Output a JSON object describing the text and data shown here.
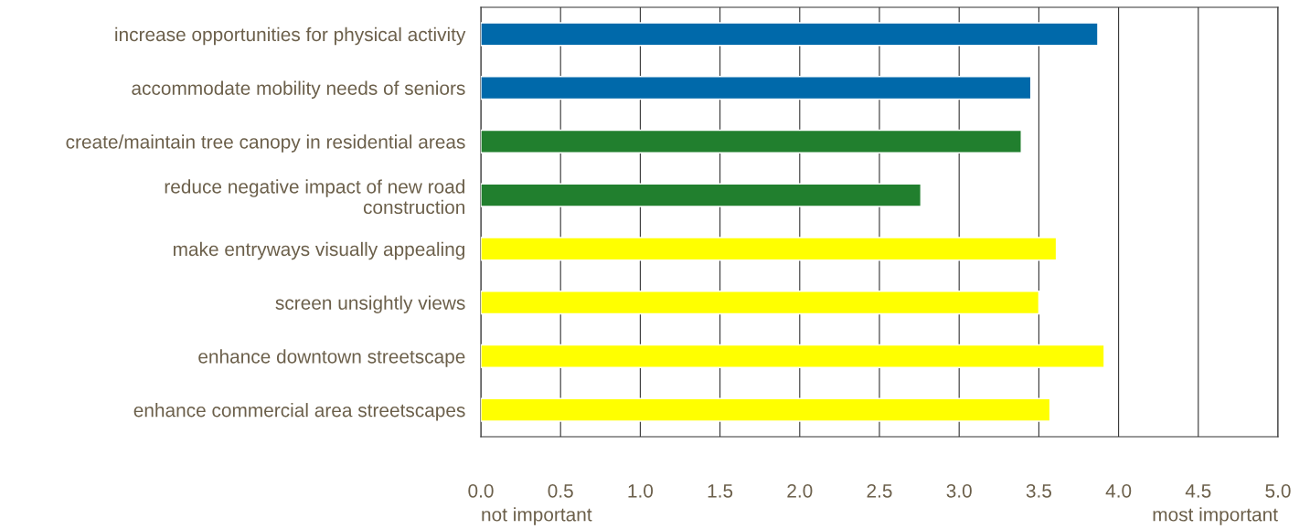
{
  "chart_data": {
    "type": "bar",
    "orientation": "horizontal",
    "categories": [
      "increase opportunities for physical activity",
      "accommodate mobility needs of seniors",
      "create/maintain tree canopy in residential areas",
      "reduce negative impact of new road\nconstruction",
      "make entryways visually appealing",
      "screen unsightly views",
      "enhance downtown streetscape",
      "enhance commercial area streetscapes"
    ],
    "values": [
      3.87,
      3.45,
      3.39,
      2.76,
      3.61,
      3.5,
      3.91,
      3.57
    ],
    "colors": [
      "#0069aa",
      "#0069aa",
      "#217f2e",
      "#217f2e",
      "#ffff00",
      "#ffff00",
      "#ffff00",
      "#ffff00"
    ],
    "xlim": [
      0,
      5
    ],
    "xticks": [
      {
        "value": 0,
        "label": "0.0"
      },
      {
        "value": 0.5,
        "label": "0.5"
      },
      {
        "value": 1,
        "label": "1.0"
      },
      {
        "value": 1.5,
        "label": "1.5"
      },
      {
        "value": 2,
        "label": "2.0"
      },
      {
        "value": 2.5,
        "label": "2.5"
      },
      {
        "value": 3,
        "label": "3.0"
      },
      {
        "value": 3.5,
        "label": "3.5"
      },
      {
        "value": 4,
        "label": "4.0"
      },
      {
        "value": 4.5,
        "label": "4.5"
      },
      {
        "value": 5,
        "label": "5.0"
      }
    ],
    "grid": "x",
    "annotations": [
      "not important",
      "most important"
    ]
  }
}
